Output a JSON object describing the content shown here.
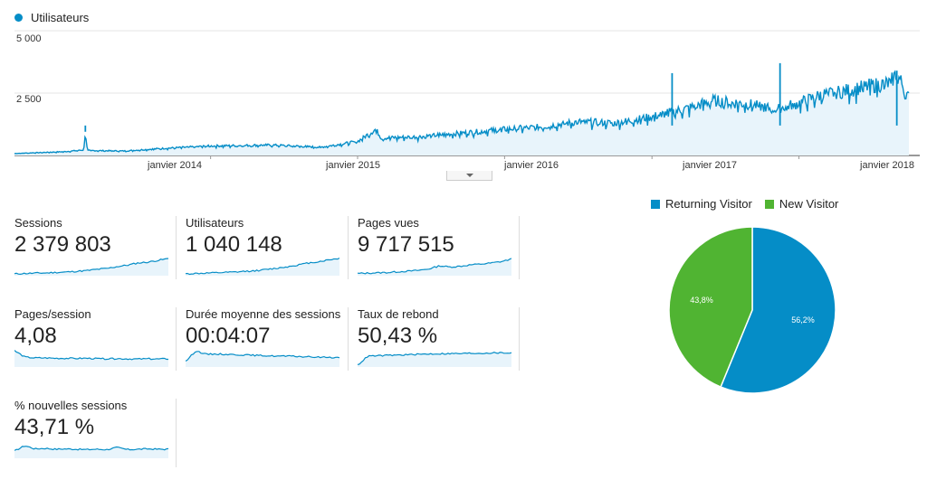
{
  "chart_data": [
    {
      "type": "line",
      "series": [
        {
          "name": "Utilisateurs",
          "color": "#058dc7",
          "points": [
            [
              "2012-09-01",
              80
            ],
            [
              "2013-01-01",
              150
            ],
            [
              "2013-02-20",
              220
            ],
            [
              "2013-02-24",
              950
            ],
            [
              "2013-03-01",
              200
            ],
            [
              "2013-06-01",
              180
            ],
            [
              "2013-09-01",
              280
            ],
            [
              "2014-01-01",
              380
            ],
            [
              "2014-06-01",
              420
            ],
            [
              "2014-10-01",
              330
            ],
            [
              "2015-01-01",
              560
            ],
            [
              "2015-02-15",
              1050
            ],
            [
              "2015-03-01",
              700
            ],
            [
              "2015-06-01",
              750
            ],
            [
              "2015-10-01",
              920
            ],
            [
              "2016-01-01",
              1050
            ],
            [
              "2016-04-01",
              1150
            ],
            [
              "2016-07-01",
              1350
            ],
            [
              "2016-10-01",
              1300
            ],
            [
              "2017-01-01",
              1550
            ],
            [
              "2017-04-01",
              1900
            ],
            [
              "2017-06-01",
              2200
            ],
            [
              "2017-09-01",
              2050
            ],
            [
              "2017-11-01",
              1850
            ],
            [
              "2018-01-01",
              2100
            ],
            [
              "2018-03-01",
              2450
            ],
            [
              "2018-05-01",
              2600
            ],
            [
              "2018-07-01",
              2800
            ],
            [
              "2018-08-15",
              2900
            ],
            [
              "2018-09-01",
              3300
            ],
            [
              "2018-10-01",
              2300
            ]
          ]
        }
      ],
      "legend": "top-left",
      "yticks": [
        "5 000",
        "2 500"
      ],
      "ylim": [
        0,
        5000
      ],
      "xticks": [
        "janvier 2014",
        "janvier 2015",
        "janvier 2016",
        "janvier 2017",
        "janvier 2018"
      ],
      "grid": true
    },
    {
      "type": "pie",
      "legend": "top",
      "slices": [
        {
          "name": "Returning Visitor",
          "value": 56.2,
          "label": "56,2%",
          "color": "#058dc7"
        },
        {
          "name": "New Visitor",
          "value": 43.8,
          "label": "43,8%",
          "color": "#50b432"
        }
      ]
    }
  ],
  "metrics": [
    {
      "label": "Sessions",
      "value": "2 379 803",
      "trend": [
        10,
        12,
        14,
        15,
        18,
        20,
        24,
        28,
        35,
        40,
        50,
        58,
        70,
        75,
        85,
        95
      ]
    },
    {
      "label": "Utilisateurs",
      "value": "1 040 148",
      "trend": [
        10,
        12,
        14,
        16,
        18,
        20,
        25,
        28,
        35,
        42,
        50,
        60,
        70,
        78,
        88,
        96
      ]
    },
    {
      "label": "Pages vues",
      "value": "9 717 515",
      "trend": [
        12,
        14,
        16,
        18,
        22,
        25,
        30,
        38,
        55,
        48,
        52,
        60,
        64,
        70,
        78,
        92
      ]
    },
    {
      "label": "Pages/session",
      "value": "4,08",
      "trend": [
        90,
        55,
        50,
        50,
        48,
        48,
        47,
        48,
        46,
        45,
        46,
        45,
        44,
        45,
        44,
        45
      ]
    },
    {
      "label": "Durée moyenne des sessions",
      "value": "00:04:07",
      "trend": [
        30,
        90,
        70,
        72,
        70,
        68,
        66,
        64,
        62,
        60,
        60,
        58,
        56,
        54,
        54,
        52
      ]
    },
    {
      "label": "Taux de rebond",
      "value": "50,43 %",
      "trend": [
        10,
        60,
        62,
        64,
        66,
        68,
        70,
        72,
        73,
        74,
        74,
        76,
        76,
        78,
        78,
        78
      ]
    },
    {
      "label": "% nouvelles sessions",
      "value": "43,71 %",
      "trend": [
        40,
        70,
        52,
        55,
        50,
        52,
        50,
        48,
        50,
        48,
        60,
        48,
        50,
        52,
        50,
        50
      ]
    }
  ]
}
